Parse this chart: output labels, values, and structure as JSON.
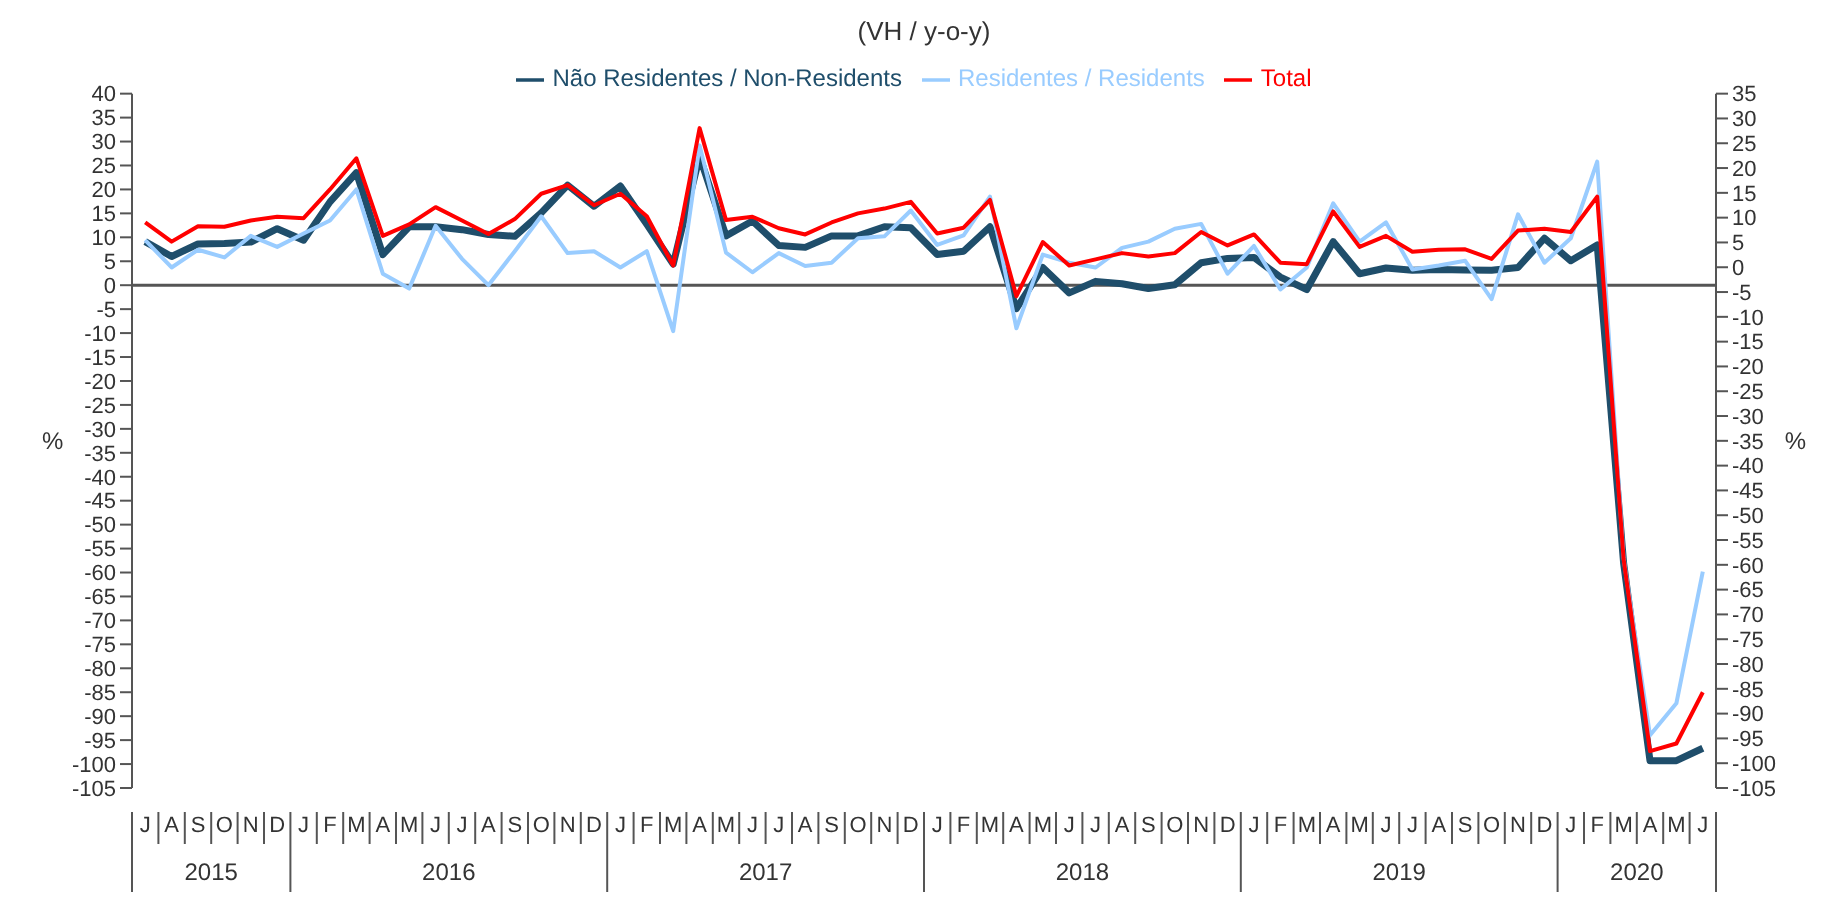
{
  "chart_data": {
    "type": "line",
    "subtitle": "(VH / y-o-y)",
    "ylabel": "%",
    "y2label": "%",
    "categories": [
      "J",
      "A",
      "S",
      "O",
      "N",
      "D",
      "J",
      "F",
      "M",
      "A",
      "M",
      "J",
      "J",
      "A",
      "S",
      "O",
      "N",
      "D",
      "J",
      "F",
      "M",
      "A",
      "M",
      "J",
      "J",
      "A",
      "S",
      "O",
      "N",
      "D",
      "J",
      "F",
      "M",
      "A",
      "M",
      "J",
      "J",
      "A",
      "S",
      "O",
      "N",
      "D",
      "J",
      "F",
      "M",
      "A",
      "M",
      "J",
      "J",
      "A",
      "S",
      "O",
      "N",
      "D",
      "J",
      "F",
      "M",
      "A",
      "M",
      "J"
    ],
    "ylim": [
      -105,
      40
    ],
    "yticks": [
      40,
      35,
      30,
      25,
      20,
      15,
      10,
      5,
      0,
      -5,
      -10,
      -15,
      -20,
      -25,
      -30,
      -35,
      -40,
      -45,
      -50,
      -55,
      -60,
      -65,
      -70,
      -75,
      -80,
      -85,
      -90,
      -95,
      -100,
      -105
    ],
    "y2lim": [
      -105,
      35
    ],
    "y2ticks": [
      35,
      30,
      25,
      20,
      15,
      10,
      5,
      0,
      -5,
      -10,
      -15,
      -20,
      -25,
      -30,
      -35,
      -40,
      -45,
      -50,
      -55,
      -60,
      -65,
      -70,
      -75,
      -80,
      -85,
      -90,
      -95,
      -100,
      -105
    ],
    "ref_lines": [
      {
        "axis": "y",
        "value": 0,
        "color": "#555555"
      }
    ],
    "annotations": [
      "2015",
      "2016",
      "2017",
      "2018",
      "2019",
      "2020"
    ],
    "legend": "top",
    "marker": "none",
    "line_style": "solid",
    "series": [
      {
        "name": "Não Residentes / Non-Residents",
        "color": "#1f4e6b",
        "values": [
          9.1,
          6,
          8.6,
          8.7,
          9,
          11.8,
          9.4,
          17.4,
          23.5,
          6.4,
          12.2,
          12.2,
          11.6,
          10.6,
          10.2,
          15.1,
          20.9,
          16.5,
          20.7,
          12.7,
          4.4,
          26.9,
          10.3,
          13.4,
          8.3,
          7.9,
          10.3,
          10.3,
          12.2,
          12,
          6.4,
          7.1,
          12.2,
          -4.9,
          3.7,
          -1.6,
          0.8,
          0.3,
          -0.7,
          0.1,
          4.7,
          5.6,
          5.8,
          1.7,
          -0.9,
          9.1,
          2.4,
          3.6,
          3.1,
          3.3,
          3.2,
          3.1,
          3.7,
          9.8,
          5.1,
          8.4,
          -58,
          -99.3,
          -99.3,
          -96.7
        ]
      },
      {
        "name": "Residentes / Residents",
        "color": "#99ccff",
        "values": [
          9.4,
          3.7,
          7.4,
          5.8,
          10.3,
          8,
          10.8,
          13.5,
          20,
          2.4,
          -0.7,
          12.4,
          5.5,
          0,
          7.1,
          14.4,
          6.7,
          7.1,
          3.7,
          7.1,
          -9.6,
          29.2,
          6.8,
          2.7,
          6.7,
          4,
          4.7,
          9.8,
          10.2,
          15.6,
          8.4,
          10.4,
          18.5,
          -9,
          6.4,
          4.7,
          3.7,
          7.8,
          9.1,
          11.8,
          12.8,
          2.4,
          8.2,
          -0.9,
          3.7,
          17.1,
          9.1,
          13.1,
          3.3,
          4.1,
          5.1,
          -2.9,
          14.8,
          4.7,
          9.8,
          25.8,
          -57,
          -94,
          -87.3,
          -59.8
        ]
      },
      {
        "name": "Total",
        "color": "#ff0000",
        "values": [
          13.1,
          9.1,
          12.3,
          12.2,
          13.5,
          14.3,
          14,
          20,
          26.5,
          10.3,
          12.7,
          16.3,
          13.5,
          10.7,
          13.8,
          19.1,
          20.9,
          16.7,
          19.1,
          14.4,
          4.1,
          32.8,
          13.6,
          14.3,
          11.9,
          10.6,
          13.1,
          15,
          16,
          17.4,
          10.8,
          12,
          17.8,
          -2.3,
          9,
          4.1,
          5.4,
          6.7,
          6,
          6.7,
          11.1,
          8.3,
          10.6,
          4.7,
          4.4,
          15.4,
          8,
          10.3,
          7,
          7.4,
          7.5,
          5.5,
          11.4,
          11.8,
          11.1,
          18.5,
          -57.2,
          -97.3,
          -95.7,
          -85
        ]
      }
    ]
  }
}
